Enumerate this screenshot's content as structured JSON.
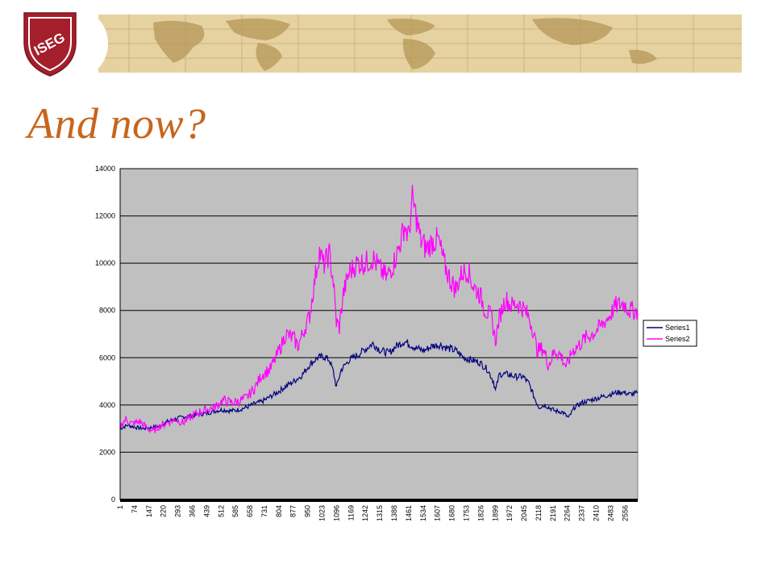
{
  "slide": {
    "title": "And now?",
    "title_color": "#C8651B",
    "logo_text": "ISEG",
    "logo_color": "#A51E2B",
    "banner_color": "#E6D2A0"
  },
  "chart_data": {
    "type": "line",
    "title": "",
    "xlabel": "",
    "ylabel": "",
    "ylim": [
      0,
      14000
    ],
    "yticks": [
      0,
      2000,
      4000,
      6000,
      8000,
      10000,
      12000,
      14000
    ],
    "xlim": [
      1,
      2620
    ],
    "xticks": [
      1,
      74,
      147,
      220,
      293,
      366,
      439,
      512,
      585,
      658,
      731,
      804,
      877,
      950,
      1023,
      1096,
      1169,
      1242,
      1315,
      1388,
      1461,
      1534,
      1607,
      1680,
      1753,
      1826,
      1899,
      1972,
      2045,
      2118,
      2191,
      2264,
      2337,
      2410,
      2483,
      2556
    ],
    "grid": true,
    "plot_background": "#C0C0C0",
    "legend_position": "right",
    "series": [
      {
        "name": "Series1",
        "color": "#000080",
        "points": [
          [
            1,
            3000
          ],
          [
            40,
            3150
          ],
          [
            80,
            3050
          ],
          [
            120,
            3000
          ],
          [
            160,
            3050
          ],
          [
            200,
            3100
          ],
          [
            240,
            3300
          ],
          [
            280,
            3400
          ],
          [
            320,
            3500
          ],
          [
            360,
            3550
          ],
          [
            400,
            3600
          ],
          [
            440,
            3650
          ],
          [
            480,
            3750
          ],
          [
            520,
            3800
          ],
          [
            560,
            3750
          ],
          [
            600,
            3800
          ],
          [
            640,
            3900
          ],
          [
            680,
            4050
          ],
          [
            720,
            4150
          ],
          [
            760,
            4350
          ],
          [
            800,
            4550
          ],
          [
            840,
            4800
          ],
          [
            880,
            5000
          ],
          [
            920,
            5250
          ],
          [
            960,
            5700
          ],
          [
            1000,
            6000
          ],
          [
            1030,
            6050
          ],
          [
            1060,
            5900
          ],
          [
            1080,
            5400
          ],
          [
            1095,
            4750
          ],
          [
            1120,
            5500
          ],
          [
            1160,
            5900
          ],
          [
            1200,
            6100
          ],
          [
            1240,
            6350
          ],
          [
            1280,
            6600
          ],
          [
            1320,
            6300
          ],
          [
            1360,
            6200
          ],
          [
            1400,
            6500
          ],
          [
            1440,
            6700
          ],
          [
            1470,
            6550
          ],
          [
            1500,
            6400
          ],
          [
            1540,
            6300
          ],
          [
            1580,
            6500
          ],
          [
            1620,
            6550
          ],
          [
            1660,
            6400
          ],
          [
            1700,
            6300
          ],
          [
            1740,
            6000
          ],
          [
            1780,
            5900
          ],
          [
            1820,
            5800
          ],
          [
            1860,
            5500
          ],
          [
            1890,
            5000
          ],
          [
            1900,
            4600
          ],
          [
            1920,
            5300
          ],
          [
            1960,
            5300
          ],
          [
            2000,
            5200
          ],
          [
            2040,
            5200
          ],
          [
            2070,
            4900
          ],
          [
            2100,
            4250
          ],
          [
            2120,
            3900
          ],
          [
            2150,
            4000
          ],
          [
            2200,
            3750
          ],
          [
            2240,
            3700
          ],
          [
            2270,
            3450
          ],
          [
            2300,
            3900
          ],
          [
            2340,
            4100
          ],
          [
            2380,
            4200
          ],
          [
            2420,
            4300
          ],
          [
            2460,
            4400
          ],
          [
            2500,
            4500
          ],
          [
            2540,
            4550
          ],
          [
            2580,
            4450
          ],
          [
            2620,
            4500
          ]
        ]
      },
      {
        "name": "Series2",
        "color": "#FF00FF",
        "points": [
          [
            1,
            3100
          ],
          [
            30,
            3400
          ],
          [
            60,
            3200
          ],
          [
            100,
            3300
          ],
          [
            140,
            3000
          ],
          [
            170,
            2900
          ],
          [
            200,
            3100
          ],
          [
            240,
            3250
          ],
          [
            280,
            3400
          ],
          [
            320,
            3250
          ],
          [
            360,
            3500
          ],
          [
            400,
            3700
          ],
          [
            440,
            3800
          ],
          [
            480,
            3900
          ],
          [
            520,
            4200
          ],
          [
            560,
            4100
          ],
          [
            600,
            4150
          ],
          [
            640,
            4300
          ],
          [
            680,
            4700
          ],
          [
            720,
            5300
          ],
          [
            760,
            5500
          ],
          [
            800,
            6200
          ],
          [
            840,
            7000
          ],
          [
            880,
            6800
          ],
          [
            900,
            6500
          ],
          [
            920,
            6900
          ],
          [
            960,
            7800
          ],
          [
            990,
            9500
          ],
          [
            1010,
            10500
          ],
          [
            1030,
            9900
          ],
          [
            1060,
            10400
          ],
          [
            1080,
            9200
          ],
          [
            1095,
            7500
          ],
          [
            1110,
            7300
          ],
          [
            1130,
            8700
          ],
          [
            1160,
            9600
          ],
          [
            1200,
            10000
          ],
          [
            1240,
            10000
          ],
          [
            1280,
            10200
          ],
          [
            1320,
            9700
          ],
          [
            1350,
            9400
          ],
          [
            1380,
            9900
          ],
          [
            1410,
            10600
          ],
          [
            1440,
            11600
          ],
          [
            1460,
            11100
          ],
          [
            1480,
            12700
          ],
          [
            1500,
            11900
          ],
          [
            1520,
            11000
          ],
          [
            1550,
            10600
          ],
          [
            1580,
            10900
          ],
          [
            1610,
            11000
          ],
          [
            1640,
            10000
          ],
          [
            1670,
            9300
          ],
          [
            1700,
            8900
          ],
          [
            1730,
            9600
          ],
          [
            1760,
            9700
          ],
          [
            1790,
            9000
          ],
          [
            1820,
            8700
          ],
          [
            1850,
            8000
          ],
          [
            1880,
            7700
          ],
          [
            1900,
            6700
          ],
          [
            1920,
            7700
          ],
          [
            1950,
            8500
          ],
          [
            1980,
            8200
          ],
          [
            2010,
            8300
          ],
          [
            2040,
            8100
          ],
          [
            2070,
            7700
          ],
          [
            2090,
            7200
          ],
          [
            2110,
            6300
          ],
          [
            2140,
            6400
          ],
          [
            2170,
            5700
          ],
          [
            2200,
            6300
          ],
          [
            2230,
            6100
          ],
          [
            2260,
            5600
          ],
          [
            2290,
            6300
          ],
          [
            2320,
            6500
          ],
          [
            2350,
            6800
          ],
          [
            2390,
            7000
          ],
          [
            2430,
            7300
          ],
          [
            2470,
            7700
          ],
          [
            2510,
            8200
          ],
          [
            2550,
            8300
          ],
          [
            2580,
            8000
          ],
          [
            2620,
            8000
          ]
        ]
      }
    ]
  }
}
